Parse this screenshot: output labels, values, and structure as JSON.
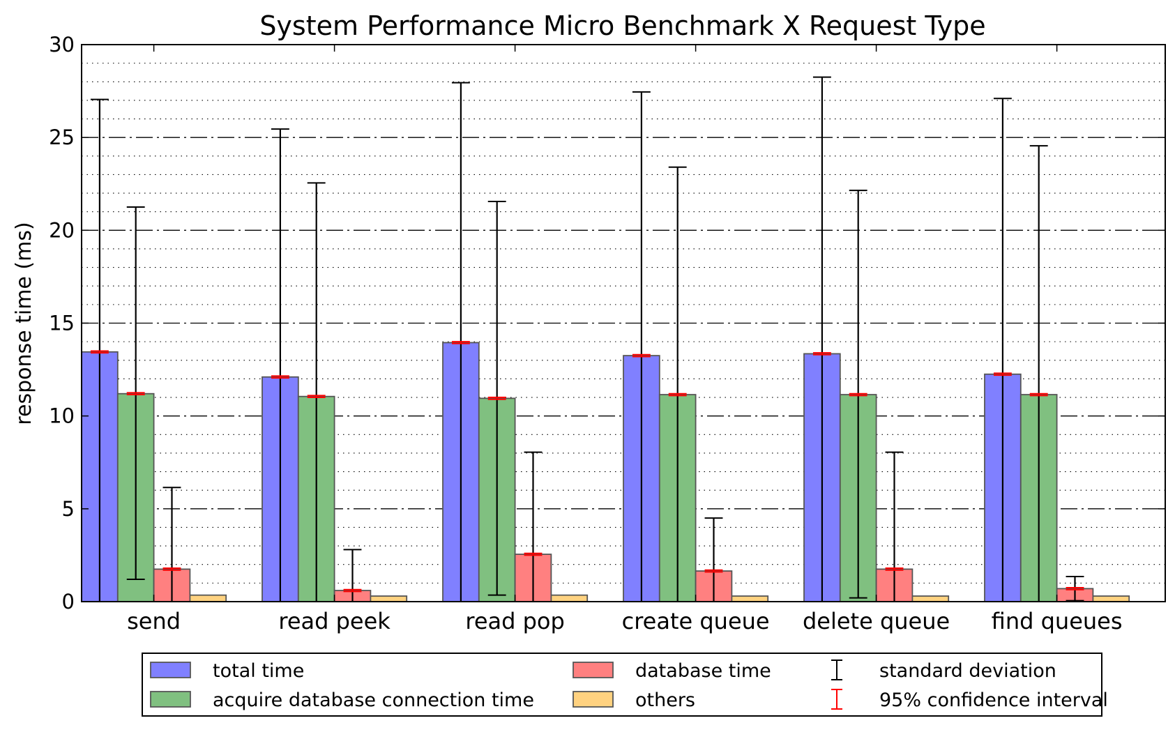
{
  "chart_data": {
    "type": "bar",
    "title": "System Performance Micro Benchmark X Request Type",
    "xlabel": "",
    "ylabel": "response time (ms)",
    "ylim": [
      0,
      30
    ],
    "yticks": [
      0,
      5,
      10,
      15,
      20,
      25,
      30
    ],
    "grid": "on",
    "legend_position": "bottom",
    "categories": [
      "send",
      "read peek",
      "read pop",
      "create queue",
      "delete queue",
      "find queues"
    ],
    "series": [
      {
        "name": "total time",
        "color": "#8080ff",
        "values": [
          13.45,
          12.1,
          13.95,
          13.25,
          13.35,
          12.25
        ],
        "std_upper": [
          27.05,
          25.45,
          27.95,
          27.45,
          28.25,
          27.1
        ],
        "std_lower": [
          0,
          0,
          0,
          0,
          0,
          0
        ],
        "ci": [
          0.05,
          0.05,
          0.05,
          0.05,
          0.05,
          0.05
        ]
      },
      {
        "name": "acquire database connection time",
        "color": "#80c080",
        "values": [
          11.2,
          11.05,
          10.95,
          11.15,
          11.15,
          11.15
        ],
        "std_upper": [
          21.25,
          22.55,
          21.55,
          23.4,
          22.15,
          24.55
        ],
        "std_lower": [
          1.2,
          0,
          0.35,
          0,
          0.2,
          0
        ],
        "ci": [
          0.05,
          0.05,
          0.05,
          0.05,
          0.05,
          0.05
        ]
      },
      {
        "name": "database time",
        "color": "#ff8080",
        "values": [
          1.75,
          0.6,
          2.55,
          1.65,
          1.75,
          0.7
        ],
        "std_upper": [
          6.15,
          2.8,
          8.05,
          4.5,
          8.05,
          1.35
        ],
        "std_lower": [
          0,
          0,
          0,
          0,
          0,
          0.05
        ],
        "ci": [
          0.05,
          0.05,
          0.05,
          0.05,
          0.05,
          0.05
        ]
      },
      {
        "name": "others",
        "color": "#ffd280",
        "values": [
          0.35,
          0.3,
          0.35,
          0.3,
          0.3,
          0.3
        ]
      }
    ],
    "legend": [
      {
        "label": "total time",
        "kind": "bar",
        "color": "#8080ff"
      },
      {
        "label": "acquire database connection time",
        "kind": "bar",
        "color": "#80c080"
      },
      {
        "label": "database time",
        "kind": "bar",
        "color": "#ff8080"
      },
      {
        "label": "others",
        "kind": "bar",
        "color": "#ffd280"
      },
      {
        "label": "standard deviation",
        "kind": "errorbar",
        "color": "#000000"
      },
      {
        "label": "95% confidence interval",
        "kind": "errorbar",
        "color": "#ff0000"
      }
    ]
  }
}
